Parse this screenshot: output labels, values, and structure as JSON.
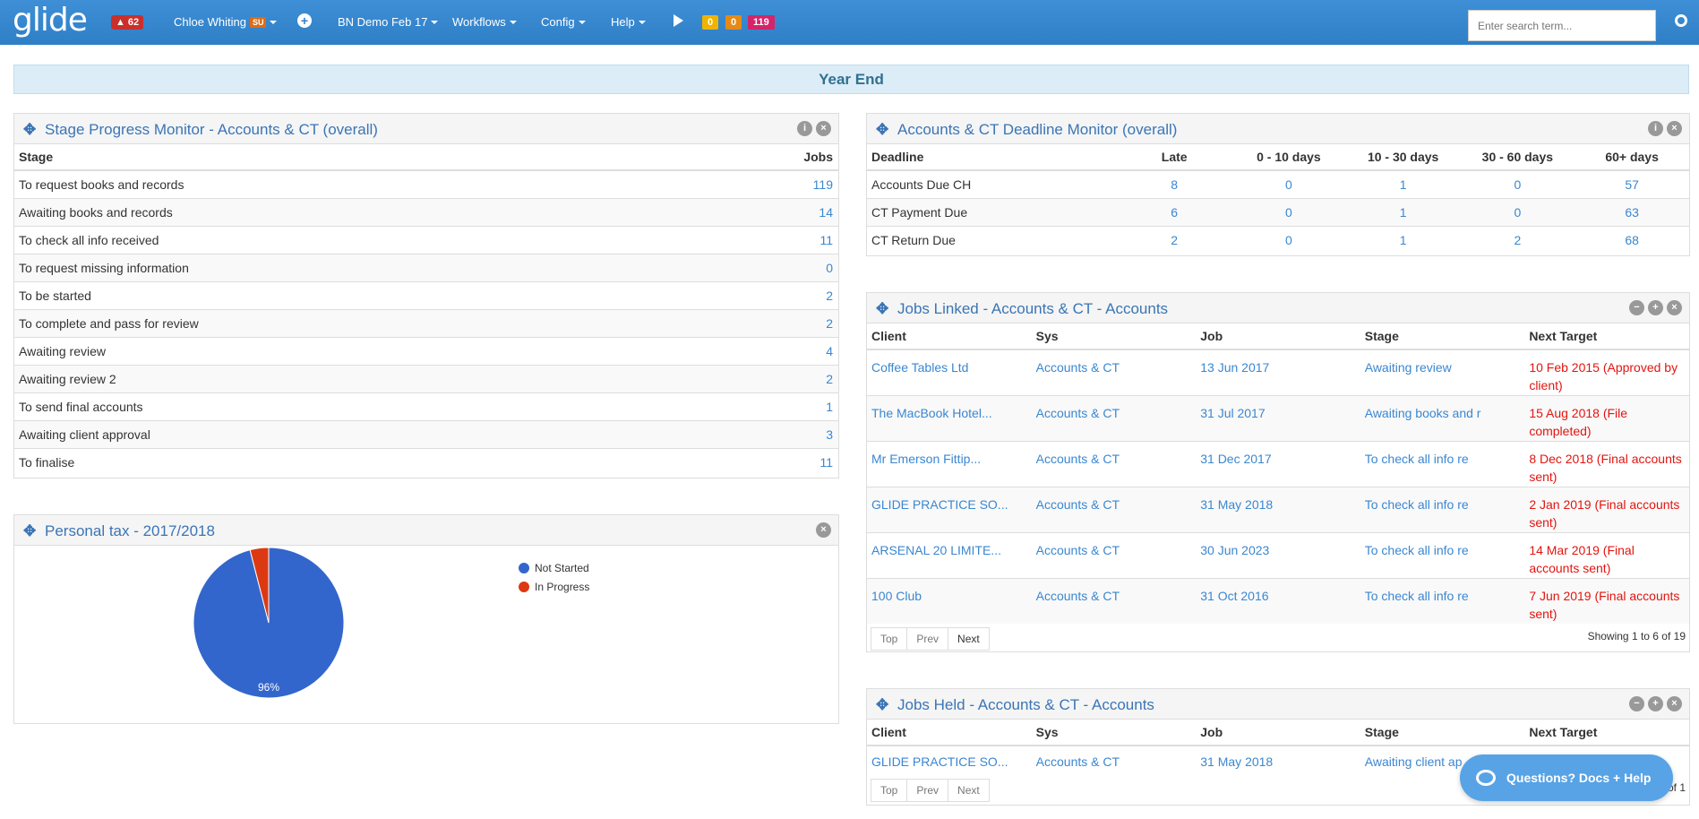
{
  "topbar": {
    "logo": "glide",
    "notifications": "62",
    "user": "Chloe Whiting",
    "user_badge": "SU",
    "practice": "BN Demo Feb 17",
    "workflows": "Workflows",
    "config": "Config",
    "help": "Help",
    "counters": [
      "0",
      "0",
      "119"
    ],
    "search_placeholder": "Enter search term..."
  },
  "section_title": "Year End",
  "stage_panel": {
    "title": "Stage Progress Monitor - Accounts & CT (overall)",
    "col_stage": "Stage",
    "col_jobs": "Jobs",
    "rows": [
      {
        "stage": "To request books and records",
        "jobs": "119"
      },
      {
        "stage": "Awaiting books and records",
        "jobs": "14"
      },
      {
        "stage": "To check all info received",
        "jobs": "11"
      },
      {
        "stage": "To request missing information",
        "jobs": "0"
      },
      {
        "stage": "To be started",
        "jobs": "2"
      },
      {
        "stage": "To complete and pass for review",
        "jobs": "2"
      },
      {
        "stage": "Awaiting review",
        "jobs": "4"
      },
      {
        "stage": "Awaiting review 2",
        "jobs": "2"
      },
      {
        "stage": "To send final accounts",
        "jobs": "1"
      },
      {
        "stage": "Awaiting client approval",
        "jobs": "3"
      },
      {
        "stage": "To finalise",
        "jobs": "11"
      }
    ]
  },
  "deadline_panel": {
    "title": "Accounts & CT Deadline Monitor (overall)",
    "headers": [
      "Deadline",
      "Late",
      "0 - 10 days",
      "10 - 30 days",
      "30 - 60 days",
      "60+ days"
    ],
    "rows": [
      [
        "Accounts Due CH",
        "8",
        "0",
        "1",
        "0",
        "57"
      ],
      [
        "CT Payment Due",
        "6",
        "0",
        "1",
        "0",
        "63"
      ],
      [
        "CT Return Due",
        "2",
        "0",
        "1",
        "2",
        "68"
      ]
    ]
  },
  "linked_panel": {
    "title": "Jobs Linked - Accounts & CT - Accounts",
    "headers": [
      "Client",
      "Sys",
      "Job",
      "Stage",
      "Next Target"
    ],
    "rows": [
      [
        "Coffee Tables Ltd",
        "Accounts & CT",
        "13 Jun 2017",
        "Awaiting review",
        "10 Feb 2015 (Approved by client)"
      ],
      [
        "The MacBook Hotel...",
        "Accounts & CT",
        "31 Jul 2017",
        "Awaiting books and r",
        "15 Aug 2018 (File completed)"
      ],
      [
        "Mr Emerson Fittip...",
        "Accounts & CT",
        "31 Dec 2017",
        "To check all info re",
        "8 Dec 2018 (Final accounts sent)"
      ],
      [
        "GLIDE PRACTICE SO...",
        "Accounts & CT",
        "31 May 2018",
        "To check all info re",
        "2 Jan 2019 (Final accounts sent)"
      ],
      [
        "ARSENAL 20 LIMITE...",
        "Accounts & CT",
        "30 Jun 2023",
        "To check all info re",
        "14 Mar 2019 (Final accounts sent)"
      ],
      [
        "100 Club",
        "Accounts & CT",
        "31 Oct 2016",
        "To check all info re",
        "7 Jun 2019 (Final accounts sent)"
      ]
    ],
    "pager": [
      "Top",
      "Prev",
      "Next"
    ],
    "showing": "Showing 1 to 6 of 19"
  },
  "held_panel": {
    "title": "Jobs Held - Accounts & CT - Accounts",
    "headers": [
      "Client",
      "Sys",
      "Job",
      "Stage",
      "Next Target"
    ],
    "row": [
      "GLIDE PRACTICE SO...",
      "Accounts & CT",
      "31 May 2018",
      "Awaiting client ap"
    ],
    "pager": [
      "Top",
      "Prev",
      "Next"
    ],
    "showing": "of 1"
  },
  "tax_panel": {
    "title": "Personal tax - 2017/2018",
    "slice_label": "96%"
  },
  "chart_data": {
    "type": "pie",
    "categories": [
      "Not Started",
      "In Progress"
    ],
    "values": [
      96,
      4
    ],
    "colors": [
      "#3366cc",
      "#dc3912"
    ],
    "legend": "right"
  },
  "help_button": "Questions? Docs + Help"
}
